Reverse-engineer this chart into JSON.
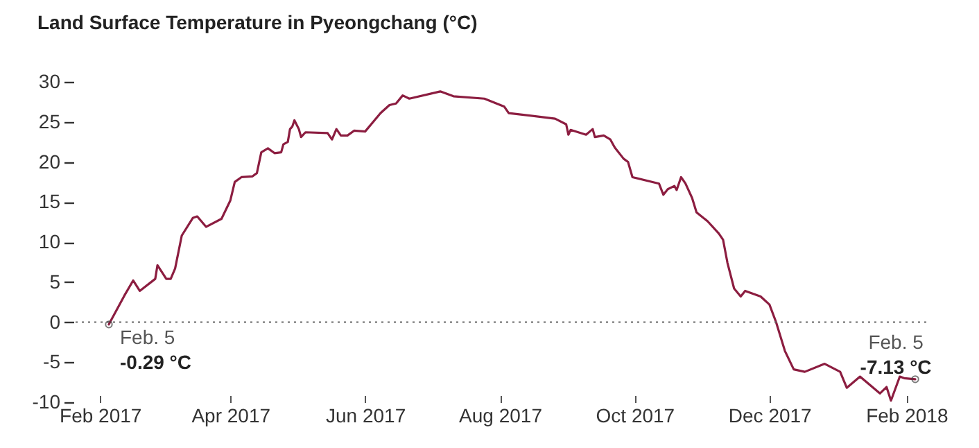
{
  "chart_data": {
    "type": "line",
    "title": "Land Surface Temperature in Pyeongchang (°C)",
    "x": [
      "2017-02-05",
      "2017-02-12",
      "2017-02-16",
      "2017-02-19",
      "2017-02-26",
      "2017-02-27",
      "2017-03-03",
      "2017-03-05",
      "2017-03-07",
      "2017-03-10",
      "2017-03-15",
      "2017-03-17",
      "2017-03-21",
      "2017-03-28",
      "2017-04-01",
      "2017-04-03",
      "2017-04-06",
      "2017-04-11",
      "2017-04-13",
      "2017-04-15",
      "2017-04-18",
      "2017-04-21",
      "2017-04-24",
      "2017-04-25",
      "2017-04-27",
      "2017-04-28",
      "2017-04-29",
      "2017-04-30",
      "2017-05-02",
      "2017-05-03",
      "2017-05-05",
      "2017-05-15",
      "2017-05-17",
      "2017-05-19",
      "2017-05-21",
      "2017-05-24",
      "2017-05-27",
      "2017-06-01",
      "2017-06-08",
      "2017-06-12",
      "2017-06-15",
      "2017-06-18",
      "2017-06-21",
      "2017-07-05",
      "2017-07-11",
      "2017-07-25",
      "2017-08-03",
      "2017-08-05",
      "2017-08-26",
      "2017-08-31",
      "2017-09-01",
      "2017-09-02",
      "2017-09-09",
      "2017-09-12",
      "2017-09-13",
      "2017-09-17",
      "2017-09-20",
      "2017-09-22",
      "2017-09-26",
      "2017-09-28",
      "2017-09-30",
      "2017-10-12",
      "2017-10-14",
      "2017-10-16",
      "2017-10-19",
      "2017-10-20",
      "2017-10-22",
      "2017-10-24",
      "2017-10-27",
      "2017-10-29",
      "2017-11-03",
      "2017-11-08",
      "2017-11-10",
      "2017-11-12",
      "2017-11-15",
      "2017-11-18",
      "2017-11-20",
      "2017-11-27",
      "2017-12-01",
      "2017-12-04",
      "2017-12-08",
      "2017-12-12",
      "2017-12-17",
      "2017-12-26",
      "2018-01-02",
      "2018-01-05",
      "2018-01-11",
      "2018-01-20",
      "2018-01-23",
      "2018-01-25",
      "2018-01-29",
      "2018-01-31",
      "2018-02-05"
    ],
    "series": [
      {
        "color": "#8c1d40",
        "values": [
          -0.29,
          3.3,
          5.2,
          3.9,
          5.4,
          7.1,
          5.4,
          5.4,
          6.7,
          10.8,
          13.0,
          13.2,
          11.9,
          12.9,
          15.2,
          17.5,
          18.1,
          18.2,
          18.6,
          21.2,
          21.7,
          21.1,
          21.2,
          22.2,
          22.5,
          24.1,
          24.4,
          25.2,
          24.1,
          23.1,
          23.7,
          23.6,
          22.8,
          24.1,
          23.3,
          23.3,
          23.9,
          23.8,
          26.1,
          27.1,
          27.3,
          28.3,
          27.9,
          28.8,
          28.2,
          27.9,
          26.9,
          26.1,
          25.4,
          24.7,
          23.4,
          24.0,
          23.4,
          24.1,
          23.1,
          23.3,
          22.8,
          21.8,
          20.4,
          20.0,
          18.1,
          17.3,
          15.9,
          16.6,
          17.0,
          16.5,
          18.1,
          17.3,
          15.5,
          13.7,
          12.6,
          11.1,
          10.3,
          7.4,
          4.2,
          3.2,
          3.9,
          3.2,
          2.2,
          0.0,
          -3.6,
          -5.9,
          -6.2,
          -5.2,
          -6.2,
          -8.2,
          -6.8,
          -8.9,
          -8.1,
          -9.8,
          -6.8,
          -7.0,
          -7.13
        ]
      }
    ],
    "xlim": [
      "2017-01-20",
      "2018-02-10"
    ],
    "xticks": [
      {
        "value": "2017-02-01",
        "label": "Feb 2017"
      },
      {
        "value": "2017-04-01",
        "label": "Apr 2017"
      },
      {
        "value": "2017-06-01",
        "label": "Jun 2017"
      },
      {
        "value": "2017-08-01",
        "label": "Aug 2017"
      },
      {
        "value": "2017-10-01",
        "label": "Oct 2017"
      },
      {
        "value": "2017-12-01",
        "label": "Dec 2017"
      },
      {
        "value": "2018-02-01",
        "label": "Feb 2018"
      }
    ],
    "ylim": [
      -10,
      30
    ],
    "yticks": [
      -10,
      -5,
      0,
      5,
      10,
      15,
      20,
      25,
      30
    ],
    "ref_lines": [
      {
        "axis": "y",
        "value": 0,
        "color": "#666666",
        "line_style": "dotted"
      }
    ],
    "annotations": [
      {
        "text": "Feb. 5",
        "x": "2017-02-05",
        "y": -0.29
      },
      {
        "text": "-0.29 °C",
        "x": "2017-02-05",
        "y": -0.29
      },
      {
        "text": "Feb. 5",
        "x": "2018-02-05",
        "y": -7.13
      },
      {
        "text": "-7.13 °C",
        "x": "2018-02-05",
        "y": -7.13
      }
    ],
    "grid": false
  }
}
